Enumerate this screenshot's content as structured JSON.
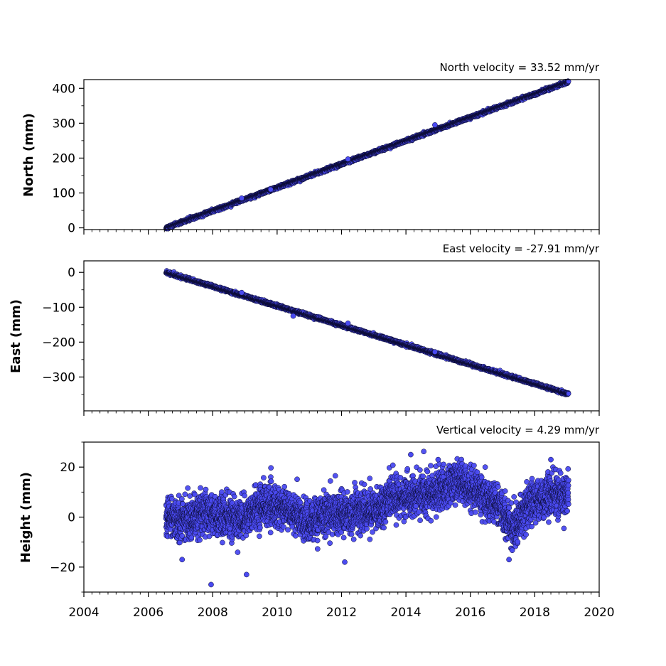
{
  "chart_data": [
    {
      "type": "scatter",
      "title": "North velocity = 33.52 mm/yr",
      "ylabel": "North (mm)",
      "xlim": [
        2004,
        2020
      ],
      "ylim": [
        -5,
        425
      ],
      "yticks": [
        0,
        100,
        200,
        300,
        400
      ],
      "ytick_labels": [
        "0",
        "100",
        "200",
        "300",
        "400"
      ],
      "show_xtick_labels": false,
      "trend": {
        "start_year": 2006.55,
        "end_year": 2019.05,
        "start_value": 0,
        "velocity_mm_per_yr": 33.52,
        "scatter_mm": 2
      },
      "outliers": [
        [
          2008.9,
          85
        ],
        [
          2012.2,
          197
        ],
        [
          2014.9,
          295
        ],
        [
          2009.8,
          110
        ]
      ],
      "series": [
        {
          "values_note": "",
          "color": "#4a4af0"
        }
      ]
    },
    {
      "type": "scatter",
      "title": "East velocity = -27.91 mm/yr",
      "ylabel": "East (mm)",
      "xlim": [
        2004,
        2020
      ],
      "ylim": [
        -397,
        33
      ],
      "yticks": [
        0,
        -100,
        -200,
        -300
      ],
      "ytick_labels": [
        "0",
        "−100",
        "−200",
        "−300"
      ],
      "show_xtick_labels": false,
      "trend": {
        "start_year": 2006.55,
        "end_year": 2019.05,
        "start_value": 0,
        "velocity_mm_per_yr": -27.91,
        "scatter_mm": 2
      },
      "outliers": [
        [
          2012.2,
          -146
        ],
        [
          2014.9,
          -228
        ],
        [
          2008.9,
          -58
        ],
        [
          2010.5,
          -125
        ]
      ],
      "series": [
        {
          "color": "#4a4af0"
        }
      ]
    },
    {
      "type": "scatter",
      "title": "Vertical velocity = 4.29 mm/yr",
      "ylabel": "Height (mm)",
      "xlim": [
        2004,
        2020
      ],
      "ylim": [
        -30,
        30
      ],
      "yticks": [
        -20,
        0,
        20
      ],
      "ytick_labels": [
        "−20",
        "0",
        "20"
      ],
      "show_xtick_labels": true,
      "xticks": [
        2004,
        2006,
        2008,
        2010,
        2012,
        2014,
        2016,
        2018,
        2020
      ],
      "xtick_labels": [
        "2004",
        "2006",
        "2008",
        "2010",
        "2012",
        "2014",
        "2016",
        "2018",
        "2020"
      ],
      "trend": {
        "start_year": 2006.55,
        "end_year": 2019.05
      },
      "baseline_profile": [
        [
          2006.55,
          0
        ],
        [
          2007.0,
          -1
        ],
        [
          2007.5,
          0
        ],
        [
          2008.0,
          1
        ],
        [
          2008.5,
          0
        ],
        [
          2009.0,
          -1
        ],
        [
          2009.5,
          5
        ],
        [
          2010.0,
          4
        ],
        [
          2010.5,
          2
        ],
        [
          2011.0,
          -3
        ],
        [
          2011.5,
          2
        ],
        [
          2012.0,
          1
        ],
        [
          2012.5,
          3
        ],
        [
          2013.0,
          2
        ],
        [
          2013.5,
          8
        ],
        [
          2014.0,
          8
        ],
        [
          2014.5,
          9
        ],
        [
          2015.0,
          10
        ],
        [
          2015.5,
          14
        ],
        [
          2016.0,
          12
        ],
        [
          2016.5,
          8
        ],
        [
          2017.0,
          3
        ],
        [
          2017.3,
          -5
        ],
        [
          2017.7,
          2
        ],
        [
          2018.0,
          6
        ],
        [
          2018.5,
          9
        ],
        [
          2019.05,
          9
        ]
      ],
      "noise_mm": 4,
      "outliers": [
        [
          2007.95,
          -27
        ],
        [
          2009.05,
          -23
        ],
        [
          2014.15,
          25
        ],
        [
          2015.0,
          23
        ],
        [
          2018.5,
          23
        ],
        [
          2012.1,
          -18
        ],
        [
          2007.05,
          -17
        ],
        [
          2017.2,
          -17
        ]
      ],
      "series": [
        {
          "color": "#4a4af0"
        }
      ]
    }
  ]
}
